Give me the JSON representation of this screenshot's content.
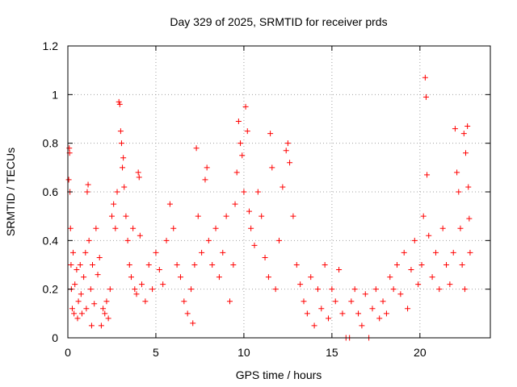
{
  "chart_data": {
    "type": "scatter",
    "title": "Day 329 of 2025, SRMTID for receiver prds",
    "xlabel": "GPS time / hours",
    "ylabel": "SRMTID / TECUs",
    "xlim": [
      0,
      24
    ],
    "ylim": [
      0,
      1.2
    ],
    "grid": true,
    "marker": "plus",
    "color": "#ff0000",
    "x_ticks": [
      0,
      5,
      10,
      15,
      20
    ],
    "x_tick_labels": [
      "0",
      "5",
      "10",
      "15",
      "20"
    ],
    "y_ticks": [
      0,
      0.2,
      0.4,
      0.6,
      0.8,
      1.0,
      1.2
    ],
    "y_tick_labels": [
      "0",
      "0.2",
      "0.4",
      "0.6",
      "0.8",
      "1",
      "1.2"
    ],
    "series": [
      {
        "name": "SRMTID",
        "points": [
          [
            0.05,
            0.65
          ],
          [
            0.08,
            0.78
          ],
          [
            0.1,
            0.76
          ],
          [
            0.12,
            0.6
          ],
          [
            0.15,
            0.45
          ],
          [
            0.18,
            0.3
          ],
          [
            0.2,
            0.2
          ],
          [
            0.25,
            0.12
          ],
          [
            0.3,
            0.35
          ],
          [
            0.35,
            0.1
          ],
          [
            0.4,
            0.22
          ],
          [
            0.5,
            0.28
          ],
          [
            0.55,
            0.08
          ],
          [
            0.6,
            0.15
          ],
          [
            0.7,
            0.3
          ],
          [
            0.75,
            0.18
          ],
          [
            0.8,
            0.1
          ],
          [
            0.9,
            0.25
          ],
          [
            1.0,
            0.35
          ],
          [
            1.05,
            0.12
          ],
          [
            1.1,
            0.6
          ],
          [
            1.15,
            0.63
          ],
          [
            1.2,
            0.4
          ],
          [
            1.3,
            0.2
          ],
          [
            1.35,
            0.05
          ],
          [
            1.4,
            0.3
          ],
          [
            1.5,
            0.14
          ],
          [
            1.6,
            0.45
          ],
          [
            1.7,
            0.26
          ],
          [
            1.8,
            0.33
          ],
          [
            1.9,
            0.05
          ],
          [
            2.0,
            0.12
          ],
          [
            2.1,
            0.1
          ],
          [
            2.2,
            0.15
          ],
          [
            2.3,
            0.08
          ],
          [
            2.4,
            0.2
          ],
          [
            2.5,
            0.5
          ],
          [
            2.6,
            0.55
          ],
          [
            2.7,
            0.45
          ],
          [
            2.8,
            0.6
          ],
          [
            2.9,
            0.97
          ],
          [
            2.95,
            0.96
          ],
          [
            3.0,
            0.85
          ],
          [
            3.05,
            0.8
          ],
          [
            3.1,
            0.7
          ],
          [
            3.15,
            0.74
          ],
          [
            3.2,
            0.62
          ],
          [
            3.3,
            0.5
          ],
          [
            3.4,
            0.4
          ],
          [
            3.5,
            0.3
          ],
          [
            3.6,
            0.25
          ],
          [
            3.7,
            0.45
          ],
          [
            3.8,
            0.2
          ],
          [
            3.9,
            0.18
          ],
          [
            4.0,
            0.68
          ],
          [
            4.05,
            0.66
          ],
          [
            4.1,
            0.42
          ],
          [
            4.2,
            0.22
          ],
          [
            4.4,
            0.15
          ],
          [
            4.6,
            0.3
          ],
          [
            4.8,
            0.2
          ],
          [
            5.0,
            0.35
          ],
          [
            5.2,
            0.28
          ],
          [
            5.4,
            0.22
          ],
          [
            5.6,
            0.4
          ],
          [
            5.8,
            0.55
          ],
          [
            6.0,
            0.45
          ],
          [
            6.2,
            0.3
          ],
          [
            6.4,
            0.25
          ],
          [
            6.6,
            0.15
          ],
          [
            6.8,
            0.1
          ],
          [
            7.0,
            0.2
          ],
          [
            7.1,
            0.06
          ],
          [
            7.2,
            0.3
          ],
          [
            7.3,
            0.78
          ],
          [
            7.4,
            0.5
          ],
          [
            7.6,
            0.35
          ],
          [
            7.8,
            0.65
          ],
          [
            7.9,
            0.7
          ],
          [
            8.0,
            0.4
          ],
          [
            8.2,
            0.3
          ],
          [
            8.4,
            0.45
          ],
          [
            8.6,
            0.25
          ],
          [
            8.8,
            0.35
          ],
          [
            9.0,
            0.5
          ],
          [
            9.2,
            0.15
          ],
          [
            9.4,
            0.3
          ],
          [
            9.5,
            0.55
          ],
          [
            9.6,
            0.68
          ],
          [
            9.7,
            0.89
          ],
          [
            9.8,
            0.8
          ],
          [
            9.9,
            0.75
          ],
          [
            10.0,
            0.6
          ],
          [
            10.1,
            0.95
          ],
          [
            10.2,
            0.85
          ],
          [
            10.3,
            0.52
          ],
          [
            10.4,
            0.45
          ],
          [
            10.6,
            0.38
          ],
          [
            10.8,
            0.6
          ],
          [
            11.0,
            0.5
          ],
          [
            11.2,
            0.33
          ],
          [
            11.4,
            0.25
          ],
          [
            11.5,
            0.84
          ],
          [
            11.6,
            0.7
          ],
          [
            11.8,
            0.2
          ],
          [
            12.0,
            0.4
          ],
          [
            12.2,
            0.62
          ],
          [
            12.4,
            0.77
          ],
          [
            12.5,
            0.8
          ],
          [
            12.6,
            0.72
          ],
          [
            12.8,
            0.5
          ],
          [
            13.0,
            0.3
          ],
          [
            13.2,
            0.22
          ],
          [
            13.4,
            0.15
          ],
          [
            13.6,
            0.1
          ],
          [
            13.8,
            0.25
          ],
          [
            14.0,
            0.05
          ],
          [
            14.2,
            0.2
          ],
          [
            14.4,
            0.12
          ],
          [
            14.6,
            0.3
          ],
          [
            14.8,
            0.08
          ],
          [
            15.0,
            0.2
          ],
          [
            15.2,
            0.15
          ],
          [
            15.4,
            0.28
          ],
          [
            15.6,
            0.1
          ],
          [
            15.8,
            0.0
          ],
          [
            16.0,
            0.0
          ],
          [
            16.1,
            0.15
          ],
          [
            16.3,
            0.2
          ],
          [
            16.5,
            0.1
          ],
          [
            16.7,
            0.05
          ],
          [
            16.9,
            0.18
          ],
          [
            17.1,
            0.0
          ],
          [
            17.3,
            0.12
          ],
          [
            17.5,
            0.2
          ],
          [
            17.7,
            0.08
          ],
          [
            17.9,
            0.15
          ],
          [
            18.1,
            0.1
          ],
          [
            18.3,
            0.25
          ],
          [
            18.5,
            0.2
          ],
          [
            18.7,
            0.3
          ],
          [
            18.9,
            0.18
          ],
          [
            19.1,
            0.35
          ],
          [
            19.3,
            0.12
          ],
          [
            19.5,
            0.28
          ],
          [
            19.7,
            0.4
          ],
          [
            19.9,
            0.22
          ],
          [
            20.1,
            0.3
          ],
          [
            20.2,
            0.5
          ],
          [
            20.3,
            1.07
          ],
          [
            20.35,
            0.99
          ],
          [
            20.4,
            0.67
          ],
          [
            20.5,
            0.42
          ],
          [
            20.7,
            0.25
          ],
          [
            20.9,
            0.35
          ],
          [
            21.1,
            0.2
          ],
          [
            21.3,
            0.45
          ],
          [
            21.5,
            0.3
          ],
          [
            21.7,
            0.22
          ],
          [
            21.9,
            0.35
          ],
          [
            22.0,
            0.86
          ],
          [
            22.1,
            0.68
          ],
          [
            22.2,
            0.6
          ],
          [
            22.3,
            0.45
          ],
          [
            22.4,
            0.3
          ],
          [
            22.5,
            0.84
          ],
          [
            22.55,
            0.2
          ],
          [
            22.6,
            0.76
          ],
          [
            22.7,
            0.87
          ],
          [
            22.75,
            0.62
          ],
          [
            22.8,
            0.49
          ],
          [
            22.85,
            0.35
          ]
        ]
      }
    ]
  }
}
